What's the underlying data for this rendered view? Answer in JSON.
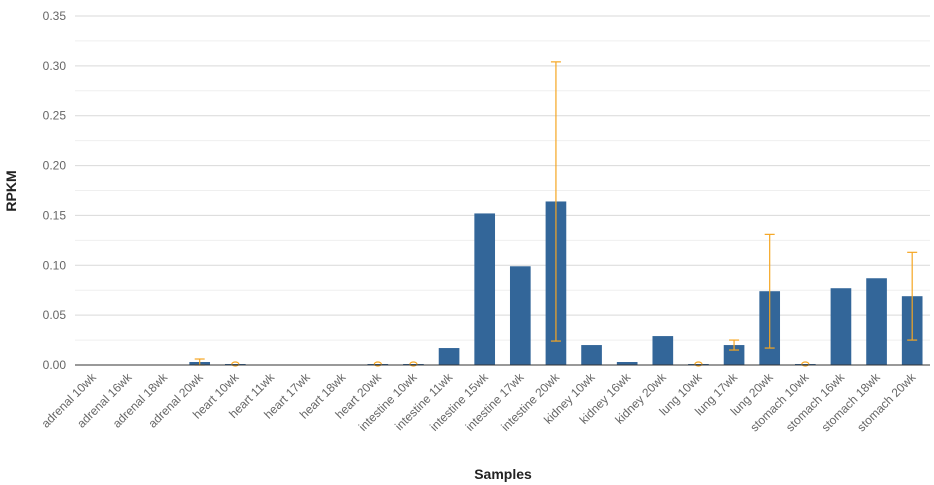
{
  "chart_data": {
    "type": "bar",
    "title": "",
    "xlabel": "Samples",
    "ylabel": "RPKM",
    "ylim": [
      0,
      0.35
    ],
    "yticks": [
      "0.00",
      "0.05",
      "0.10",
      "0.15",
      "0.20",
      "0.25",
      "0.30",
      "0.35"
    ],
    "grid": true,
    "colors": {
      "bar": "#336699",
      "error": "#f5a623",
      "grid": "#d9d9d9"
    },
    "categories": [
      "adrenal 10wk",
      "adrenal 16wk",
      "adrenal 18wk",
      "adrenal 20wk",
      "heart 10wk",
      "heart 11wk",
      "heart 17wk",
      "heart 18wk",
      "heart 20wk",
      "intestine 10wk",
      "intestine 11wk",
      "intestine 15wk",
      "intestine 17wk",
      "intestine 20wk",
      "kidney 10wk",
      "kidney 16wk",
      "kidney 20wk",
      "lung 10wk",
      "lung 17wk",
      "lung 20wk",
      "stomach 10wk",
      "stomach 16wk",
      "stomach 18wk",
      "stomach 20wk"
    ],
    "values": [
      0,
      0,
      0,
      0.003,
      0.001,
      0,
      0,
      0,
      0.001,
      0.001,
      0.017,
      0.152,
      0.099,
      0.164,
      0.02,
      0.003,
      0.029,
      0.001,
      0.02,
      0.074,
      0.001,
      0.077,
      0.087,
      0.069
    ],
    "error": [
      null,
      null,
      null,
      0.003,
      null,
      null,
      null,
      null,
      null,
      null,
      null,
      null,
      null,
      0.14,
      null,
      null,
      null,
      null,
      0.005,
      0.057,
      null,
      null,
      null,
      0.044
    ]
  }
}
